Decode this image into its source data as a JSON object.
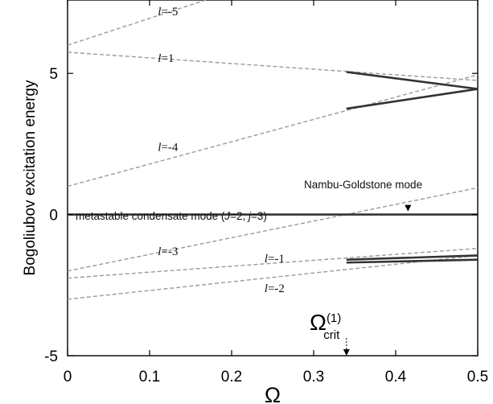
{
  "chart_data": {
    "type": "line",
    "title": "",
    "xlabel": "Ω",
    "ylabel": "Bogoliubov excitation energy",
    "xlim": [
      0,
      0.5
    ],
    "ylim": [
      -5,
      7.6
    ],
    "x_ticks": [
      "0",
      "0.1",
      "0.2",
      "0.3",
      "0.4",
      "0.5"
    ],
    "y_ticks": [
      "-5",
      "0",
      "5"
    ],
    "grid": false,
    "dashed_branches": [
      {
        "l": "-5",
        "points": [
          [
            0,
            6.0
          ],
          [
            0.2,
            7.9
          ]
        ]
      },
      {
        "l": "1",
        "points": [
          [
            0,
            5.75
          ],
          [
            0.5,
            4.75
          ]
        ]
      },
      {
        "l": "-4",
        "points": [
          [
            0,
            1.0
          ],
          [
            0.5,
            4.95
          ]
        ]
      },
      {
        "l": "-3",
        "points": [
          [
            0,
            -2.0
          ],
          [
            0.5,
            0.95
          ]
        ]
      },
      {
        "l": "-1",
        "points": [
          [
            0,
            -2.25
          ],
          [
            0.5,
            -1.2
          ]
        ]
      },
      {
        "l": "-2",
        "points": [
          [
            0,
            -3.0
          ],
          [
            0.5,
            -1.45
          ]
        ]
      }
    ],
    "solid_branches": [
      {
        "points": [
          [
            0,
            0
          ],
          [
            0.5,
            0
          ]
        ]
      },
      {
        "points": [
          [
            0.34,
            5.05
          ],
          [
            0.5,
            4.45
          ]
        ]
      },
      {
        "points": [
          [
            0.34,
            3.75
          ],
          [
            0.5,
            4.45
          ]
        ]
      },
      {
        "points": [
          [
            0.34,
            -1.6
          ],
          [
            0.5,
            -1.45
          ]
        ]
      },
      {
        "points": [
          [
            0.34,
            -1.7
          ],
          [
            0.5,
            -1.6
          ]
        ]
      }
    ],
    "branch_labels": [
      {
        "l_sym": "l",
        "value": "=-5",
        "at": [
          0.11,
          7.2
        ]
      },
      {
        "l_sym": "l",
        "value": "=1",
        "at": [
          0.11,
          5.55
        ]
      },
      {
        "l_sym": "l",
        "value": "=-4",
        "at": [
          0.11,
          2.4
        ]
      },
      {
        "l_sym": "l",
        "value": "=-3",
        "at": [
          0.11,
          -1.3
        ]
      },
      {
        "l_sym": "l",
        "value": "=-1",
        "at": [
          0.24,
          -1.55
        ]
      },
      {
        "l_sym": "l",
        "value": "=-2",
        "at": [
          0.24,
          -2.6
        ]
      }
    ],
    "annotations": {
      "metastable_prefix": "metastable condensate mode (",
      "J_sym": "J",
      "J_val": "=2, ",
      "j_sym": "j",
      "j_val": "=3)",
      "nambu": "Nambu-Goldstone mode",
      "omega_crit_main": "Ω",
      "omega_crit_sup": "(1)",
      "omega_crit_sub": "crit",
      "omega_crit_x": 0.34,
      "nambu_arrow_x": 0.415
    }
  }
}
